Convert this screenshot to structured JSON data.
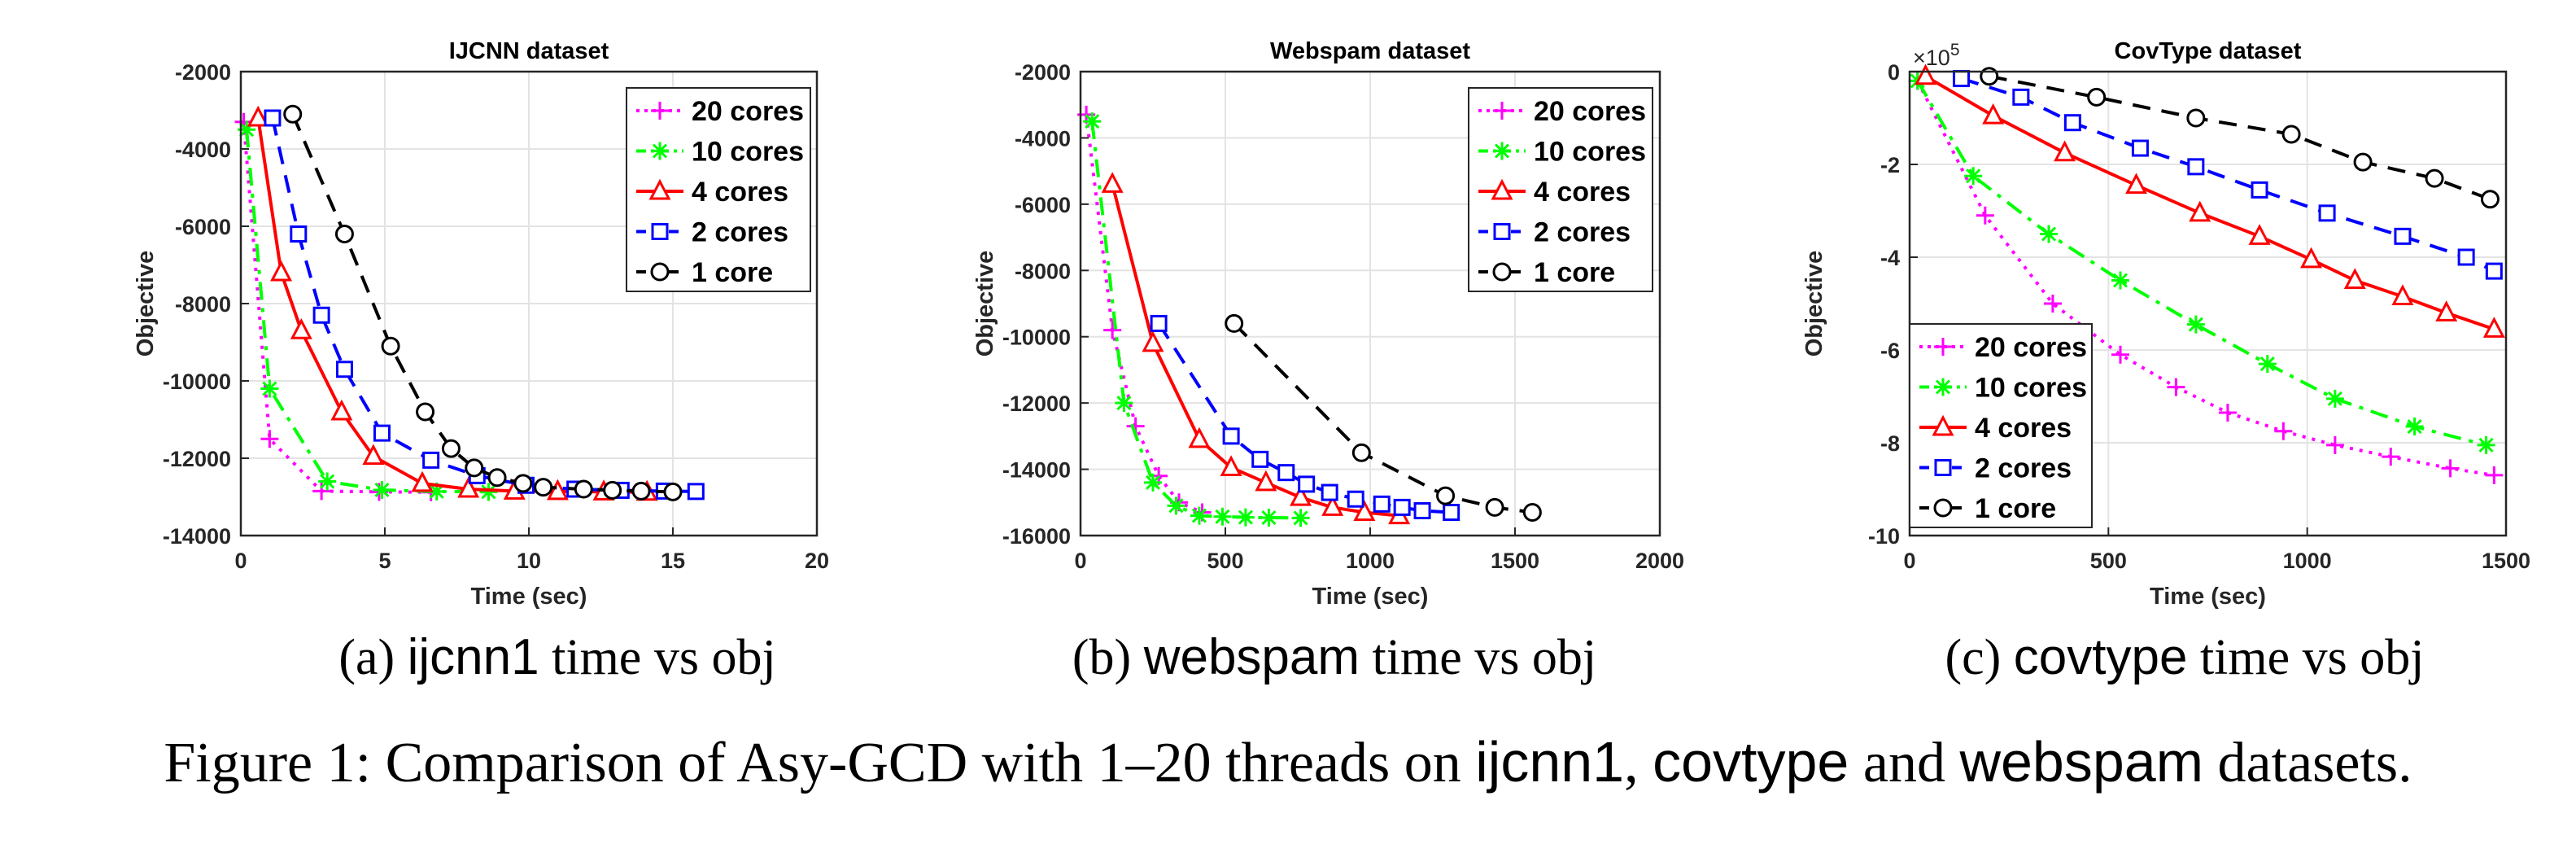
{
  "chart_data": [
    {
      "type": "line",
      "title": "IJCNN dataset",
      "xlabel": "Time (sec)",
      "ylabel": "Objective",
      "xlim": [
        0,
        20
      ],
      "ylim": [
        -14000,
        -2000
      ],
      "xticks": [
        0,
        5,
        10,
        15,
        20
      ],
      "yticks": [
        -14000,
        -12000,
        -10000,
        -8000,
        -6000,
        -4000,
        -2000
      ],
      "xtick_labels": [
        "0",
        "5",
        "10",
        "15",
        "20"
      ],
      "ytick_labels": [
        "-14000",
        "-12000",
        "-10000",
        "-8000",
        "-6000",
        "-4000",
        "-2000"
      ],
      "exponent_label": "",
      "grid": true,
      "legend_position": "top-right",
      "series": [
        {
          "name": "20 cores",
          "color": "#ff00ff",
          "marker": "plus",
          "linestyle": "dotted",
          "x": [
            0.1,
            1.0,
            2.8,
            4.8,
            6.6
          ],
          "y": [
            -3300,
            -11500,
            -12850,
            -12870,
            -12880
          ]
        },
        {
          "name": "10 cores",
          "color": "#00ff00",
          "marker": "star",
          "linestyle": "dashdot",
          "x": [
            0.2,
            1.0,
            3.0,
            4.9,
            6.8,
            8.6
          ],
          "y": [
            -3500,
            -10200,
            -12600,
            -12820,
            -12860,
            -12870
          ]
        },
        {
          "name": "4 cores",
          "color": "#ff0000",
          "marker": "triangle",
          "linestyle": "solid",
          "x": [
            0.6,
            1.4,
            2.1,
            3.5,
            4.6,
            6.3,
            7.9,
            9.5,
            11.0,
            12.6,
            14.1
          ],
          "y": [
            -3200,
            -7200,
            -8700,
            -10800,
            -11950,
            -12650,
            -12800,
            -12850,
            -12860,
            -12870,
            -12880
          ]
        },
        {
          "name": "2 cores",
          "color": "#0000ff",
          "marker": "square",
          "linestyle": "dashed",
          "x": [
            1.1,
            2.0,
            2.8,
            3.6,
            4.9,
            6.6,
            8.2,
            9.9,
            11.6,
            13.2,
            14.7,
            15.8
          ],
          "y": [
            -3200,
            -6200,
            -8300,
            -9700,
            -11350,
            -12050,
            -12450,
            -12700,
            -12800,
            -12830,
            -12850,
            -12860
          ]
        },
        {
          "name": "1 core",
          "color": "#000000",
          "marker": "circle",
          "linestyle": "dashed",
          "x": [
            1.8,
            3.6,
            5.2,
            6.4,
            7.3,
            8.1,
            8.9,
            9.8,
            10.5,
            11.9,
            12.9,
            13.9,
            15.0
          ],
          "y": [
            -3100,
            -6200,
            -9100,
            -10800,
            -11750,
            -12250,
            -12500,
            -12650,
            -12750,
            -12800,
            -12830,
            -12850,
            -12870
          ]
        }
      ]
    },
    {
      "type": "line",
      "title": "Webspam dataset",
      "xlabel": "Time (sec)",
      "ylabel": "Objective",
      "xlim": [
        0,
        2000
      ],
      "ylim": [
        -16000,
        -2000
      ],
      "xticks": [
        0,
        500,
        1000,
        1500,
        2000
      ],
      "yticks": [
        -16000,
        -14000,
        -12000,
        -10000,
        -8000,
        -6000,
        -4000,
        -2000
      ],
      "xtick_labels": [
        "0",
        "500",
        "1000",
        "1500",
        "2000"
      ],
      "ytick_labels": [
        "-16000",
        "-14000",
        "-12000",
        "-10000",
        "-8000",
        "-6000",
        "-4000",
        "-2000"
      ],
      "exponent_label": "",
      "grid": true,
      "legend_position": "top-right",
      "series": [
        {
          "name": "20 cores",
          "color": "#ff00ff",
          "marker": "plus",
          "linestyle": "dotted",
          "x": [
            20,
            110,
            190,
            270,
            340,
            420
          ],
          "y": [
            -3300,
            -9800,
            -12700,
            -14200,
            -15000,
            -15300
          ]
        },
        {
          "name": "10 cores",
          "color": "#00ff00",
          "marker": "star",
          "linestyle": "dashdot",
          "x": [
            40,
            150,
            250,
            330,
            410,
            490,
            570,
            650,
            760
          ],
          "y": [
            -3500,
            -12000,
            -14400,
            -15100,
            -15400,
            -15430,
            -15450,
            -15460,
            -15470
          ]
        },
        {
          "name": "4 cores",
          "color": "#ff0000",
          "marker": "triangle",
          "linestyle": "solid",
          "x": [
            110,
            250,
            410,
            520,
            640,
            760,
            870,
            980,
            1100
          ],
          "y": [
            -5400,
            -10200,
            -13100,
            -13950,
            -14400,
            -14850,
            -15150,
            -15300,
            -15400
          ]
        },
        {
          "name": "2 cores",
          "color": "#0000ff",
          "marker": "square",
          "linestyle": "dashed",
          "x": [
            270,
            520,
            620,
            710,
            780,
            860,
            950,
            1040,
            1110,
            1180,
            1280
          ],
          "y": [
            -9600,
            -13000,
            -13700,
            -14100,
            -14450,
            -14700,
            -14900,
            -15050,
            -15150,
            -15250,
            -15300
          ]
        },
        {
          "name": "1 core",
          "color": "#000000",
          "marker": "circle",
          "linestyle": "dashed",
          "x": [
            530,
            970,
            1260,
            1430,
            1560
          ],
          "y": [
            -9600,
            -13500,
            -14800,
            -15150,
            -15300
          ]
        }
      ]
    },
    {
      "type": "line",
      "title": "CovType dataset",
      "xlabel": "Time (sec)",
      "ylabel": "Objective",
      "xlim": [
        0,
        1500
      ],
      "ylim": [
        -10,
        0
      ],
      "xticks": [
        0,
        500,
        1000,
        1500
      ],
      "yticks": [
        -10,
        -8,
        -6,
        -4,
        -2,
        0
      ],
      "xtick_labels": [
        "0",
        "500",
        "1000",
        "1500"
      ],
      "ytick_labels": [
        "-10",
        "-8",
        "-6",
        "-4",
        "-2",
        "0"
      ],
      "exponent_label": "×10",
      "exponent_power": "5",
      "grid": true,
      "legend_position": "bottom-left",
      "series": [
        {
          "name": "20 cores",
          "color": "#ff00ff",
          "marker": "plus",
          "linestyle": "dotted",
          "x": [
            20,
            190,
            360,
            530,
            670,
            800,
            940,
            1070,
            1210,
            1360,
            1470
          ],
          "y": [
            -0.2,
            -3.1,
            -5.0,
            -6.1,
            -6.8,
            -7.35,
            -7.75,
            -8.05,
            -8.3,
            -8.55,
            -8.7
          ]
        },
        {
          "name": "10 cores",
          "color": "#00ff00",
          "marker": "star",
          "linestyle": "dashdot",
          "x": [
            20,
            160,
            350,
            530,
            720,
            900,
            1070,
            1270,
            1450
          ],
          "y": [
            -0.2,
            -2.25,
            -3.5,
            -4.5,
            -5.45,
            -6.3,
            -7.05,
            -7.65,
            -8.05
          ]
        },
        {
          "name": "4 cores",
          "color": "#ff0000",
          "marker": "triangle",
          "linestyle": "solid",
          "x": [
            40,
            210,
            390,
            570,
            730,
            880,
            1010,
            1120,
            1240,
            1350,
            1470
          ],
          "y": [
            -0.1,
            -0.95,
            -1.75,
            -2.45,
            -3.05,
            -3.55,
            -4.05,
            -4.5,
            -4.85,
            -5.2,
            -5.55
          ]
        },
        {
          "name": "2 cores",
          "color": "#0000ff",
          "marker": "square",
          "linestyle": "dashed",
          "x": [
            130,
            280,
            410,
            580,
            720,
            880,
            1050,
            1240,
            1400,
            1470
          ],
          "y": [
            -0.15,
            -0.55,
            -1.1,
            -1.65,
            -2.05,
            -2.55,
            -3.05,
            -3.55,
            -4.0,
            -4.3
          ]
        },
        {
          "name": "1 core",
          "color": "#000000",
          "marker": "circle",
          "linestyle": "dashed",
          "x": [
            200,
            470,
            720,
            960,
            1140,
            1320,
            1460
          ],
          "y": [
            -0.1,
            -0.55,
            -1.0,
            -1.35,
            -1.95,
            -2.3,
            -2.75
          ]
        }
      ]
    }
  ],
  "captions": {
    "a_prefix": "(a) ",
    "a_name": "ijcnn1",
    "a_suffix": " time vs obj",
    "b_prefix": "(b) ",
    "b_name": "webspam",
    "b_suffix": " time vs obj",
    "c_prefix": "(c) ",
    "c_name": "covtype",
    "c_suffix": " time vs obj",
    "figure_prefix": "Figure 1: Comparison of Asy-GCD with 1–20 threads on ",
    "figure_name1": "ijcnn1",
    "figure_sep1": ", ",
    "figure_name2": "covtype",
    "figure_sep2": " and ",
    "figure_name3": "webspam",
    "figure_suffix": " datasets."
  }
}
